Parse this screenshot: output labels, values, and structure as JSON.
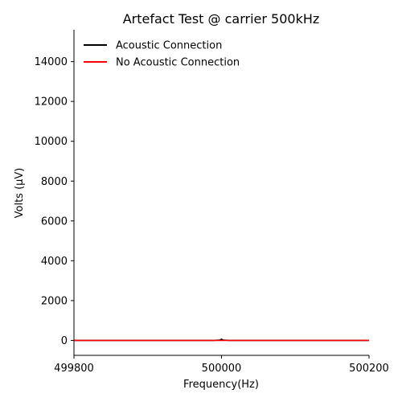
{
  "chart_data": {
    "type": "line",
    "title": "Artefact Test @ carrier 500kHz",
    "xlabel": "Frequency(Hz)",
    "ylabel": "Volts (µV)",
    "xlim": [
      499800,
      500200
    ],
    "ylim": [
      -750,
      15600
    ],
    "xticks": [
      499800,
      500000,
      500200
    ],
    "xtick_labels": [
      "499800",
      "500000",
      "500200"
    ],
    "yticks": [
      0,
      2000,
      4000,
      6000,
      8000,
      10000,
      12000,
      14000
    ],
    "ytick_labels": [
      "0",
      "2000",
      "4000",
      "6000",
      "8000",
      "10000",
      "12000",
      "14000"
    ],
    "grid": false,
    "legend_position": "top-left",
    "series": [
      {
        "name": "Acoustic Connection",
        "color": "#000000",
        "x": [
          499800,
          499990,
          499998,
          500000,
          500002,
          500010,
          500200
        ],
        "y": [
          0,
          0,
          20,
          60,
          20,
          0,
          0
        ]
      },
      {
        "name": "No Acoustic Connection",
        "color": "#ff0000",
        "x": [
          499800,
          500000,
          500200
        ],
        "y": [
          0,
          0,
          0
        ]
      }
    ]
  }
}
